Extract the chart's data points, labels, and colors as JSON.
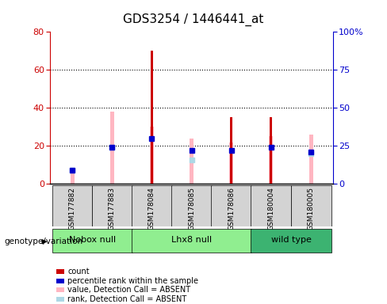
{
  "title": "GDS3254 / 1446441_at",
  "samples": [
    "GSM177882",
    "GSM177883",
    "GSM178084",
    "GSM178085",
    "GSM178086",
    "GSM180004",
    "GSM180005"
  ],
  "red_bar_heights": [
    0,
    0,
    70,
    0,
    35,
    35,
    0
  ],
  "pink_bar_heights": [
    8,
    38,
    30,
    24,
    22,
    25,
    26
  ],
  "blue_marker_heights": [
    9,
    24,
    30,
    22,
    22,
    24,
    21
  ],
  "lightblue_marker_heights": [
    9,
    24,
    0,
    16,
    0,
    0,
    20
  ],
  "has_red": [
    false,
    false,
    true,
    false,
    true,
    true,
    false
  ],
  "has_lightblue": [
    true,
    true,
    false,
    true,
    false,
    false,
    true
  ],
  "ylim_left": [
    0,
    80
  ],
  "ylim_right": [
    0,
    100
  ],
  "yticks_left": [
    0,
    20,
    40,
    60,
    80
  ],
  "yticks_right": [
    0,
    25,
    50,
    75,
    100
  ],
  "ytick_labels_right": [
    "0",
    "25",
    "50",
    "75",
    "100%"
  ],
  "left_axis_color": "#CC0000",
  "right_axis_color": "#0000CC",
  "group_data": [
    {
      "name": "Nobox null",
      "start": 0,
      "end": 1,
      "color": "#90EE90"
    },
    {
      "name": "Lhx8 null",
      "start": 2,
      "end": 4,
      "color": "#90EE90"
    },
    {
      "name": "wild type",
      "start": 5,
      "end": 6,
      "color": "#3CB371"
    }
  ],
  "legend_items": [
    {
      "label": "count",
      "color": "#CC0000"
    },
    {
      "label": "percentile rank within the sample",
      "color": "#0000CC"
    },
    {
      "label": "value, Detection Call = ABSENT",
      "color": "#FFB6C1"
    },
    {
      "label": "rank, Detection Call = ABSENT",
      "color": "#ADD8E6"
    }
  ]
}
